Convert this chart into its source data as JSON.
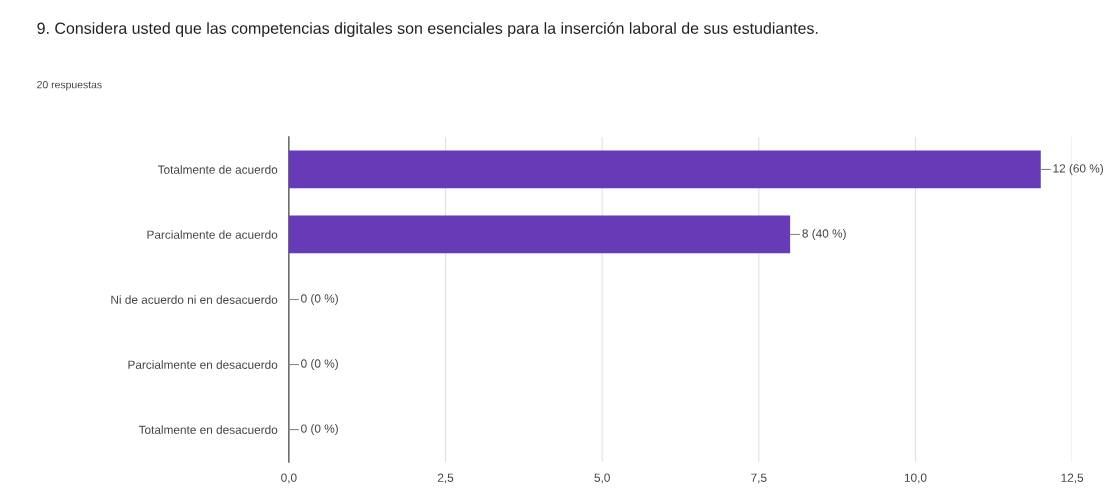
{
  "chart_data": {
    "type": "bar",
    "orientation": "horizontal",
    "title": "9. Considera usted que las competencias digitales son esenciales para la inserción laboral de sus estudiantes.",
    "subtitle": "20 respuestas",
    "categories": [
      "Totalmente de acuerdo",
      "Parcialmente de acuerdo",
      "Ni de acuerdo ni en desacuerdo",
      "Parcialmente en desacuerdo",
      "Totalmente en desacuerdo"
    ],
    "values": [
      12,
      8,
      0,
      0,
      0
    ],
    "value_labels": [
      "12 (60 %)",
      "8 (40 %)",
      "0 (0 %)",
      "0 (0 %)",
      "0 (0 %)"
    ],
    "color": "#673ab7",
    "xlim": [
      0,
      12.5
    ],
    "xticks": [
      {
        "value": 0,
        "label": "0,0"
      },
      {
        "value": 2.5,
        "label": "2,5"
      },
      {
        "value": 5,
        "label": "5,0"
      },
      {
        "value": 7.5,
        "label": "7,5"
      },
      {
        "value": 10,
        "label": "10,0"
      },
      {
        "value": 12.5,
        "label": "12,5"
      }
    ],
    "grid": "x",
    "legend": false
  }
}
